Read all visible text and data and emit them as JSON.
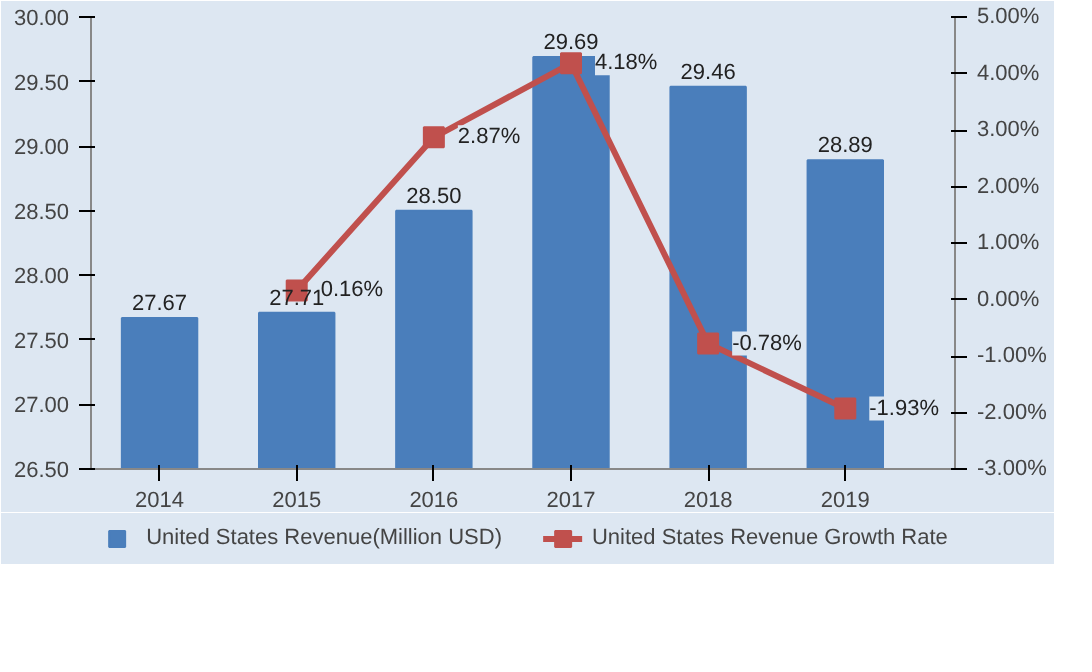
{
  "chart_data": {
    "type": "bar",
    "categories": [
      "2014",
      "2015",
      "2016",
      "2017",
      "2018",
      "2019"
    ],
    "series": [
      {
        "name": "United States Revenue(Million USD)",
        "color": "#4a7ebb",
        "values": [
          27.67,
          27.71,
          28.5,
          29.69,
          29.46,
          28.89
        ],
        "value_labels": [
          "27.67",
          "27.71",
          "28.50",
          "29.69",
          "29.46",
          "28.89"
        ]
      },
      {
        "name": "United States Revenue Growth Rate",
        "type": "line",
        "axis": "y2",
        "color": "#c0504d",
        "marker": "square",
        "values": [
          null,
          0.16,
          2.87,
          4.18,
          -0.78,
          -1.93
        ],
        "value_labels": [
          null,
          "0.16%",
          "2.87%",
          "4.18%",
          "-0.78%",
          "-1.93%"
        ]
      }
    ],
    "ylim": [
      26.5,
      30
    ],
    "yticks": [
      {
        "value": 26.5,
        "label": "26.50"
      },
      {
        "value": 27,
        "label": "27.00"
      },
      {
        "value": 27.5,
        "label": "27.50"
      },
      {
        "value": 28,
        "label": "28.00"
      },
      {
        "value": 28.5,
        "label": "28.50"
      },
      {
        "value": 29,
        "label": "29.00"
      },
      {
        "value": 29.5,
        "label": "29.50"
      },
      {
        "value": 30,
        "label": "30.00"
      }
    ],
    "y2lim": [
      -3,
      5
    ],
    "y2ticks": [
      {
        "value": -3,
        "label": "-3.00%"
      },
      {
        "value": -2,
        "label": "-2.00%"
      },
      {
        "value": -1,
        "label": "-1.00%"
      },
      {
        "value": 0,
        "label": "0.00%"
      },
      {
        "value": 1,
        "label": "1.00%"
      },
      {
        "value": 2,
        "label": "2.00%"
      },
      {
        "value": 3,
        "label": "3.00%"
      },
      {
        "value": 4,
        "label": "4.00%"
      },
      {
        "value": 5,
        "label": "5.00%"
      }
    ],
    "grid": false,
    "legend": "bottom"
  }
}
